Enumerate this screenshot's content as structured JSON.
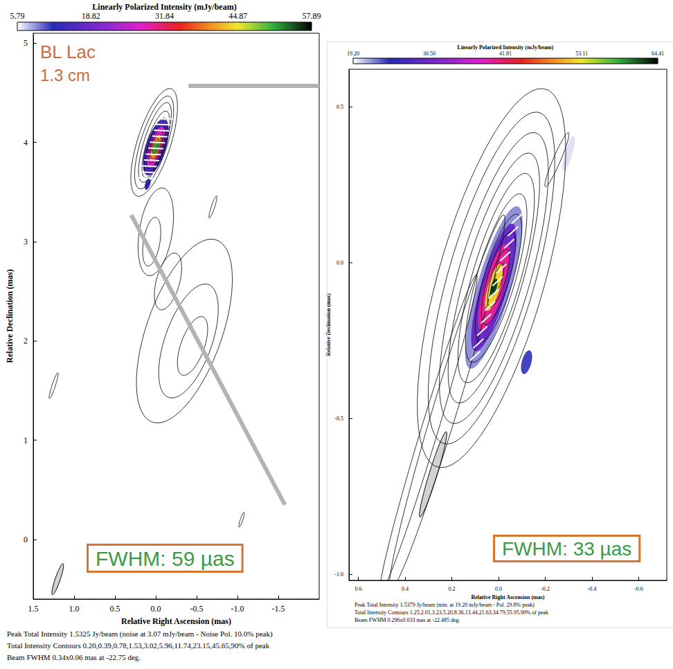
{
  "chart_data": [
    {
      "type": "contour",
      "title": "BL Lac",
      "subtitle": "1.3 cm",
      "annotation": "FWHM: 59 µas",
      "x_label": "Relative Right Ascension (mas)",
      "y_label": "Relative Declination (mas)",
      "xlim": [
        1.5,
        -2.0
      ],
      "xticks": [
        1.5,
        {
          "value": 1,
          "label": "1.0"
        },
        0.5,
        {
          "value": 0,
          "label": "0.0"
        },
        -0.5,
        {
          "value": -1,
          "label": "-1.0"
        },
        -1.5
      ],
      "ylim": [
        -0.6,
        5.1
      ],
      "yticks": [
        0,
        1,
        2,
        3,
        4,
        5
      ],
      "colorbar": {
        "label": "Linearly Polarized Intensity (mJy/beam)",
        "range": [
          5.79,
          57.89
        ],
        "ticks": [
          5.79,
          18.82,
          31.84,
          44.87,
          57.89
        ]
      },
      "contours": [
        {
          "center": [
            0.02,
            4.0
          ],
          "axes": [
            0.58,
            0.2
          ],
          "pa": -22
        },
        {
          "center": [
            0.02,
            4.0
          ],
          "axes": [
            0.5,
            0.16
          ],
          "pa": -22
        },
        {
          "center": [
            0.01,
            4.0
          ],
          "axes": [
            0.43,
            0.13
          ],
          "pa": -22
        },
        {
          "center": [
            0.0,
            3.98
          ],
          "axes": [
            0.36,
            0.11
          ],
          "pa": -22
        },
        {
          "center": [
            0.0,
            3.97
          ],
          "axes": [
            0.3,
            0.09
          ],
          "pa": -22
        },
        {
          "center": [
            0.0,
            3.96
          ],
          "axes": [
            0.24,
            0.075
          ],
          "pa": -22
        },
        {
          "center": [
            0.0,
            3.96
          ],
          "axes": [
            0.18,
            0.06
          ],
          "pa": -22
        },
        {
          "center": [
            0.0,
            3.96
          ],
          "axes": [
            0.13,
            0.045
          ],
          "pa": -22
        },
        {
          "center": [
            0.0,
            3.96
          ],
          "axes": [
            0.08,
            0.03
          ],
          "pa": -22
        },
        {
          "center": [
            -0.35,
            2.1
          ],
          "axes": [
            1.0,
            0.45
          ],
          "pa": -25
        },
        {
          "center": [
            -0.4,
            2.0
          ],
          "axes": [
            0.62,
            0.28
          ],
          "pa": -25
        },
        {
          "center": [
            -0.45,
            1.95
          ],
          "axes": [
            0.32,
            0.14
          ],
          "pa": -25
        },
        {
          "center": [
            0.0,
            3.1
          ],
          "axes": [
            0.45,
            0.2
          ],
          "pa": -12
        },
        {
          "center": [
            0.05,
            3.0
          ],
          "axes": [
            0.25,
            0.1
          ],
          "pa": -12
        },
        {
          "center": [
            -0.15,
            2.6
          ],
          "axes": [
            0.3,
            0.14
          ],
          "pa": -20
        },
        {
          "center": [
            1.25,
            1.55
          ],
          "axes": [
            0.14,
            0.02
          ],
          "pa": -22
        },
        {
          "center": [
            -1.05,
            0.2
          ],
          "axes": [
            0.08,
            0.015
          ],
          "pa": -22
        },
        {
          "center": [
            -0.7,
            3.35
          ],
          "axes": [
            0.12,
            0.02
          ],
          "pa": -22
        }
      ],
      "polarization": [
        {
          "center": [
            0.0,
            3.95
          ],
          "axes": [
            0.3,
            0.12
          ],
          "pa": -22,
          "value": 15
        },
        {
          "center": [
            0.0,
            3.95
          ],
          "axes": [
            0.22,
            0.08
          ],
          "pa": -22,
          "value": 27
        },
        {
          "center": [
            0.0,
            3.95
          ],
          "axes": [
            0.14,
            0.05
          ],
          "pa": -22,
          "value": 40
        },
        {
          "center": [
            0.0,
            3.95
          ],
          "axes": [
            0.07,
            0.025
          ],
          "pa": -22,
          "value": 52
        },
        {
          "center": [
            0.1,
            3.58
          ],
          "axes": [
            0.06,
            0.03
          ],
          "pa": -22,
          "value": 12
        }
      ],
      "evpa": [
        [
          0.13,
          3.64,
          88
        ],
        [
          0.1,
          3.7,
          88
        ],
        [
          0.08,
          3.76,
          88
        ],
        [
          0.05,
          3.82,
          88
        ],
        [
          0.03,
          3.88,
          88
        ],
        [
          0.0,
          3.94,
          88
        ],
        [
          -0.02,
          4.0,
          88
        ],
        [
          -0.05,
          4.06,
          88
        ],
        [
          -0.07,
          4.12,
          88
        ],
        [
          -0.09,
          4.18,
          88
        ],
        [
          -0.12,
          4.24,
          88
        ]
      ],
      "beam": {
        "center": [
          1.2,
          -0.4
        ],
        "major": 0.34,
        "minor": 0.06,
        "pa": -22.75
      },
      "zoom_lines": [
        [
          [
            -0.4,
            4.57
          ],
          [
            -2.0,
            4.57
          ]
        ],
        [
          [
            0.3,
            3.27
          ],
          [
            -1.58,
            0.35
          ]
        ]
      ],
      "notes": [
        "Peak Total Intensity 1.5325 Jy/beam (noise at 3.07 mJy/beam - Noise Pol. 10.0% peak)",
        "Total Intensity Contours 0.20,0.39,0.78,1.53,3.02,5.96,11.74,23.15,45.65,90% of peak",
        "Beam FWHM 0.34x0.06 mas at -22.75 deg."
      ]
    },
    {
      "type": "contour",
      "annotation": "FWHM: 33 µas",
      "x_label": "Relative Right Ascension (mas)",
      "y_label": "Relative Declination (mas)",
      "xlim": [
        0.64,
        -0.72
      ],
      "xticks": [
        0.6,
        0.4,
        0.2,
        {
          "value": 0,
          "label": "0.0"
        },
        -0.2,
        -0.4,
        -0.6
      ],
      "ylim": [
        -1.02,
        0.62
      ],
      "yticks": [
        0.5,
        {
          "value": 0,
          "label": "0.0"
        },
        -0.5,
        {
          "value": -1,
          "label": "-1.0"
        }
      ],
      "colorbar": {
        "label": "Linearly Polarized Intensity (mJy/beam)",
        "range": [
          19.2,
          64.41
        ],
        "ticks": [
          {
            "value": 19.2,
            "label": "19.20"
          },
          {
            "value": 30.5,
            "label": "30.50"
          },
          41.81,
          53.11,
          64.41
        ]
      },
      "contours": [
        {
          "center": [
            0.03,
            -0.05
          ],
          "axes": [
            0.65,
            0.22
          ],
          "pa": -22
        },
        {
          "center": [
            0.03,
            -0.05
          ],
          "axes": [
            0.57,
            0.18
          ],
          "pa": -22
        },
        {
          "center": [
            0.02,
            -0.05
          ],
          "axes": [
            0.5,
            0.15
          ],
          "pa": -22
        },
        {
          "center": [
            0.02,
            -0.05
          ],
          "axes": [
            0.43,
            0.12
          ],
          "pa": -22
        },
        {
          "center": [
            0.01,
            -0.05
          ],
          "axes": [
            0.36,
            0.1
          ],
          "pa": -22
        },
        {
          "center": [
            0.01,
            -0.05
          ],
          "axes": [
            0.29,
            0.08
          ],
          "pa": -22
        },
        {
          "center": [
            0.0,
            -0.05
          ],
          "axes": [
            0.22,
            0.06
          ],
          "pa": -22
        },
        {
          "center": [
            0.0,
            -0.05
          ],
          "axes": [
            0.16,
            0.045
          ],
          "pa": -22
        },
        {
          "center": [
            0.0,
            -0.05
          ],
          "axes": [
            0.1,
            0.03
          ],
          "pa": -22
        },
        {
          "center": [
            0.0,
            -0.05
          ],
          "axes": [
            0.05,
            0.015
          ],
          "pa": -22
        },
        {
          "center": [
            0.22,
            -0.45
          ],
          "axes": [
            0.65,
            0.05
          ],
          "pa": -22
        },
        {
          "center": [
            0.3,
            -0.55
          ],
          "axes": [
            0.55,
            0.035
          ],
          "pa": -22
        },
        {
          "center": [
            -0.25,
            0.33
          ],
          "axes": [
            0.1,
            0.015
          ],
          "pa": -30
        }
      ],
      "polarization": [
        {
          "center": [
            0.02,
            -0.08
          ],
          "axes": [
            0.28,
            0.07
          ],
          "pa": -22,
          "value": 22
        },
        {
          "center": [
            0.02,
            -0.08
          ],
          "axes": [
            0.22,
            0.055
          ],
          "pa": -22,
          "value": 30
        },
        {
          "center": [
            0.02,
            -0.08
          ],
          "axes": [
            0.15,
            0.04
          ],
          "pa": -22,
          "value": 40
        },
        {
          "center": [
            0.02,
            -0.08
          ],
          "axes": [
            0.08,
            0.025
          ],
          "pa": -22,
          "value": 52
        },
        {
          "center": [
            0.02,
            -0.08
          ],
          "axes": [
            0.03,
            0.012
          ],
          "pa": -22,
          "value": 62
        },
        {
          "center": [
            -0.3,
            0.35
          ],
          "axes": [
            0.06,
            0.015
          ],
          "pa": -22,
          "value": 20
        },
        {
          "center": [
            -0.12,
            -0.32
          ],
          "axes": [
            0.04,
            0.02
          ],
          "pa": -22,
          "value": 24
        }
      ],
      "evpa": [
        [
          0.1,
          -0.3,
          -55
        ],
        [
          0.086,
          -0.26,
          -55
        ],
        [
          0.07,
          -0.22,
          -55
        ],
        [
          0.053,
          -0.18,
          -55
        ],
        [
          0.037,
          -0.14,
          -55
        ],
        [
          0.02,
          -0.1,
          -55
        ],
        [
          0.004,
          -0.06,
          -55
        ],
        [
          -0.012,
          -0.02,
          -55
        ],
        [
          -0.029,
          0.02,
          -55
        ],
        [
          -0.045,
          0.06,
          -55
        ],
        [
          -0.062,
          0.1,
          -55
        ],
        [
          -0.078,
          0.14,
          -55
        ]
      ],
      "beam": {
        "center": [
          0.28,
          -0.68
        ],
        "major": 0.296,
        "minor": 0.033,
        "pa": -22.485
      },
      "notes": [
        "Peak Total Intensity 1.5379 Jy/beam (min. at 19.20 mJy/beam - Pol. 29.8% peak)",
        "Total Intensity Contours 1.25,2.01,3.23,5.20,8.36,13.44,21.63,34.79,55.95,90% of peak",
        "Beam FWHM 0.296x0.033 mas at -22.485 deg."
      ]
    }
  ]
}
